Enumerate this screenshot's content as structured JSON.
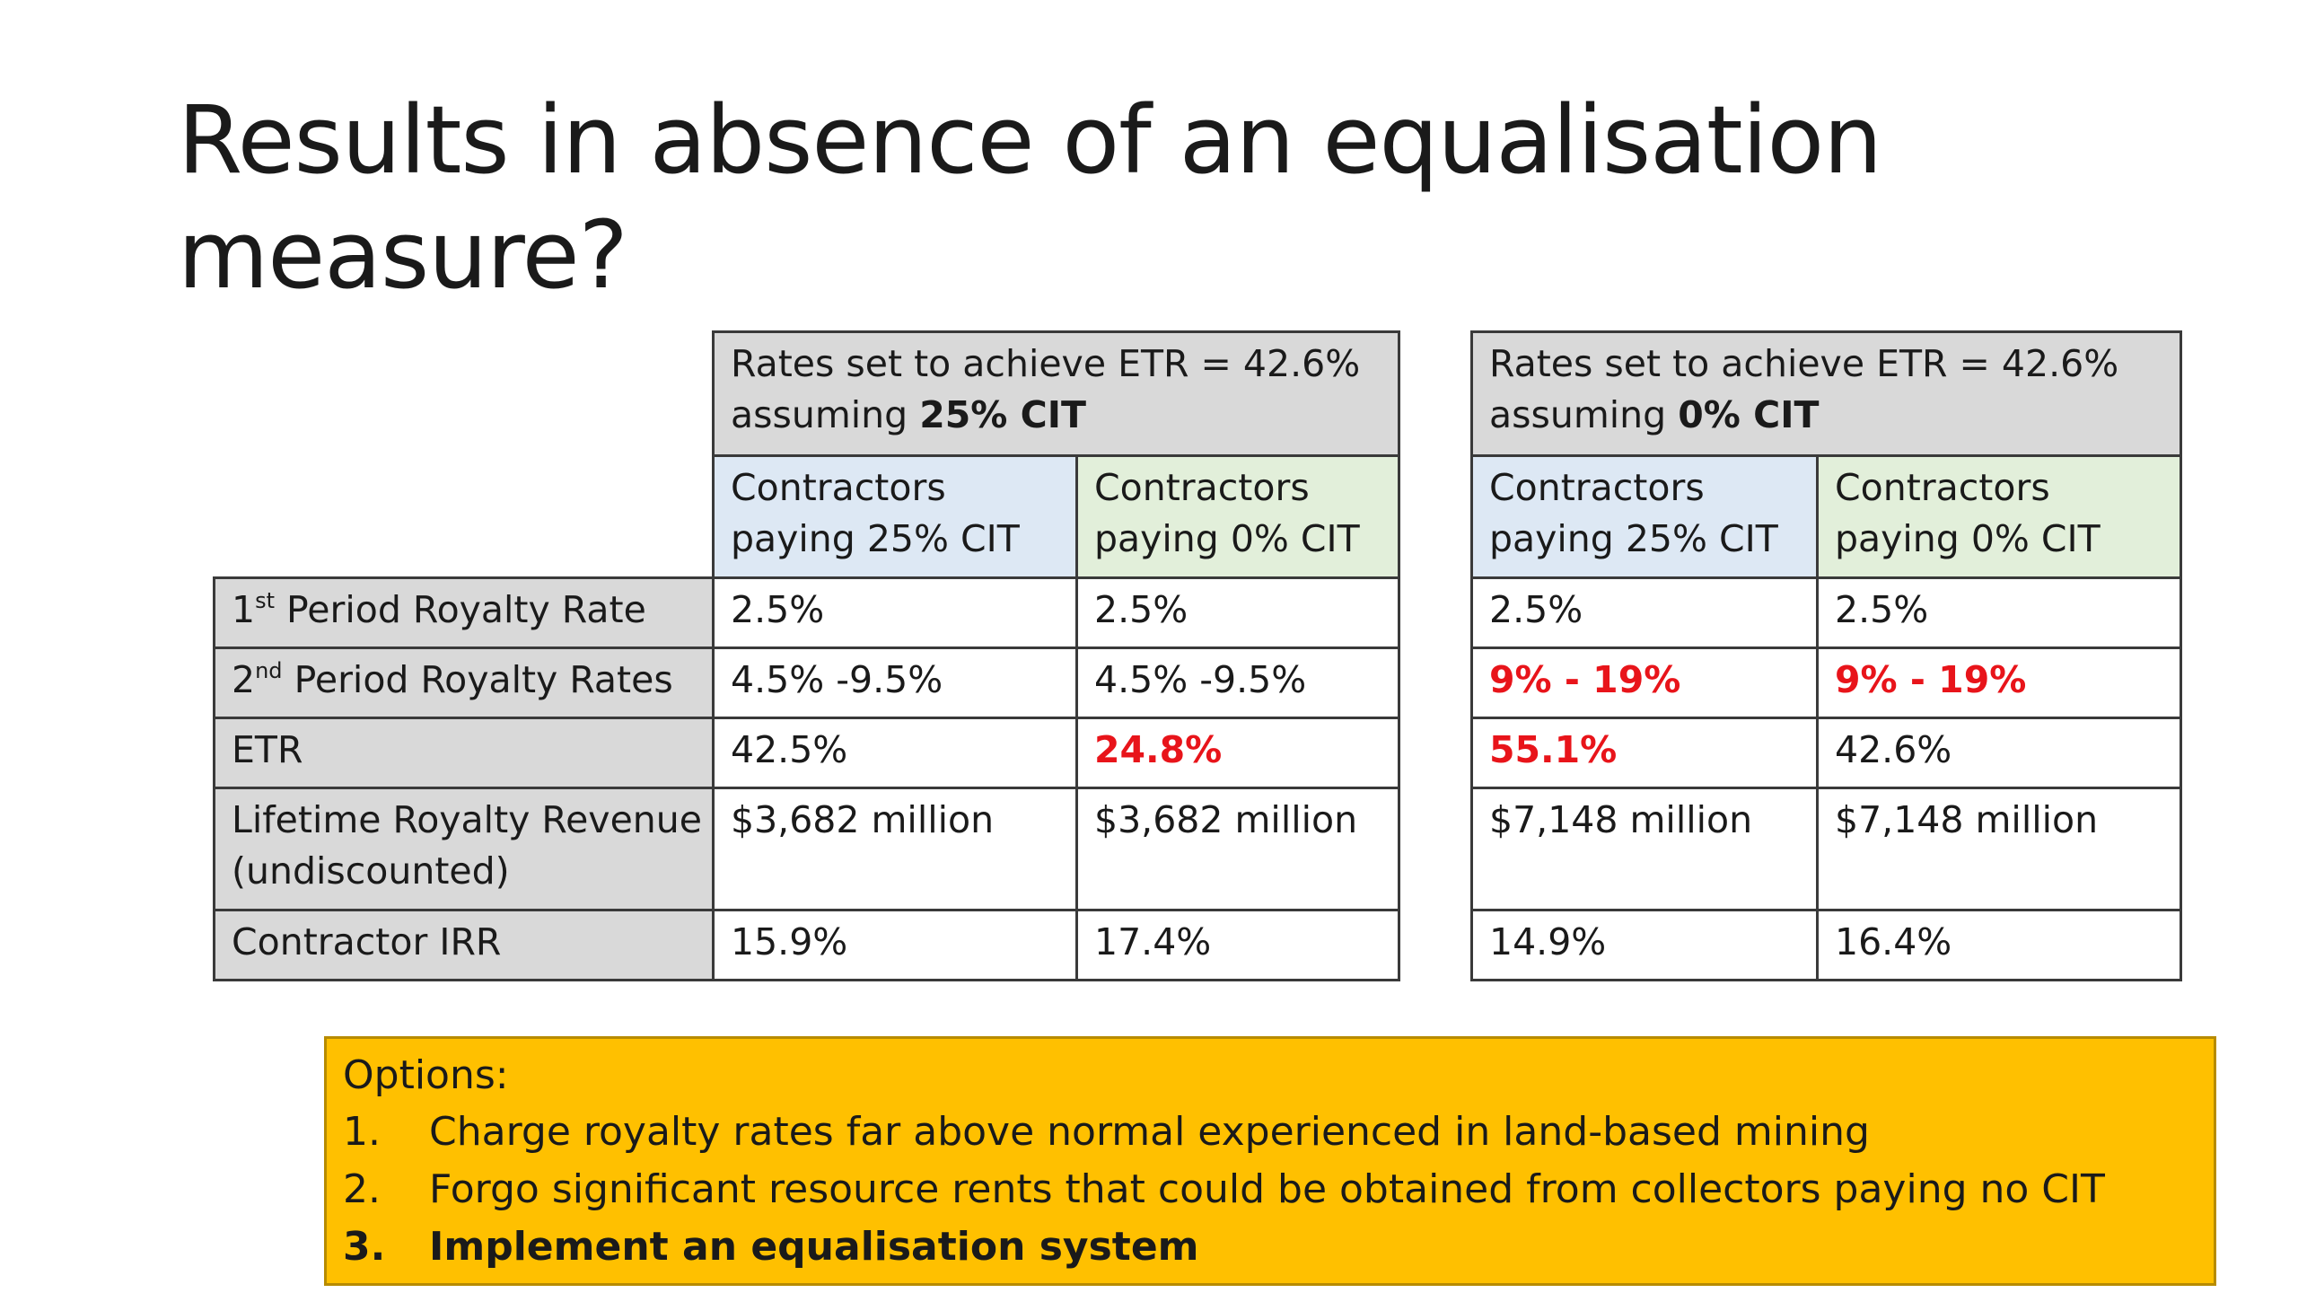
{
  "slide": {
    "title": "Results in absence of an equalisation measure?"
  },
  "row_labels": {
    "r1_main": "1",
    "r1_sup": "st",
    "r1_rest": " Period Royalty Rate",
    "r2_main": "2",
    "r2_sup": "nd",
    "r2_rest": " Period Royalty Rates",
    "r3": "ETR",
    "r4_line1": "Lifetime Royalty Revenue",
    "r4_line2": "(undiscounted)",
    "r5": "Contractor IRR"
  },
  "table_left": {
    "header_line1": "Rates set to achieve ETR = 42.6%",
    "header_line2_prefix": "assuming ",
    "header_line2_bold": "25% CIT",
    "col1_line1": "Contractors",
    "col1_line2": "paying 25% CIT",
    "col2_line1": "Contractors",
    "col2_line2": "paying 0% CIT",
    "rows": [
      [
        "2.5%",
        "2.5%"
      ],
      [
        "4.5% -9.5%",
        "4.5% -9.5%"
      ],
      [
        "42.5%",
        "24.8%"
      ],
      [
        "$3,682 million",
        "$3,682 million"
      ],
      [
        "15.9%",
        "17.4%"
      ]
    ]
  },
  "table_right": {
    "header_line1": "Rates set to achieve ETR = 42.6%",
    "header_line2_prefix": "assuming ",
    "header_line2_bold": "0% CIT",
    "col1_line1": "Contractors",
    "col1_line2": "paying 25% CIT",
    "col2_line1": "Contractors",
    "col2_line2": "paying 0% CIT",
    "rows": [
      [
        "2.5%",
        "2.5%"
      ],
      [
        "9% - 19%",
        "9% - 19%"
      ],
      [
        "55.1%",
        "42.6%"
      ],
      [
        "$7,148 million",
        "$7,148 million"
      ],
      [
        "14.9%",
        "16.4%"
      ]
    ]
  },
  "options": {
    "heading": "Options:",
    "items": [
      {
        "num": "1.",
        "text": "Charge royalty rates far above normal experienced in land-based mining"
      },
      {
        "num": "2.",
        "text": "Forgo significant resource rents that could be obtained from collectors paying no CIT"
      },
      {
        "num": "3.",
        "text": "Implement an equalisation system"
      }
    ]
  },
  "colors": {
    "header_gray": "#d9d9d9",
    "col_blue": "#dde8f4",
    "col_green": "#e2efda",
    "highlight_red": "#e8141a",
    "options_bg": "#ffc000"
  }
}
